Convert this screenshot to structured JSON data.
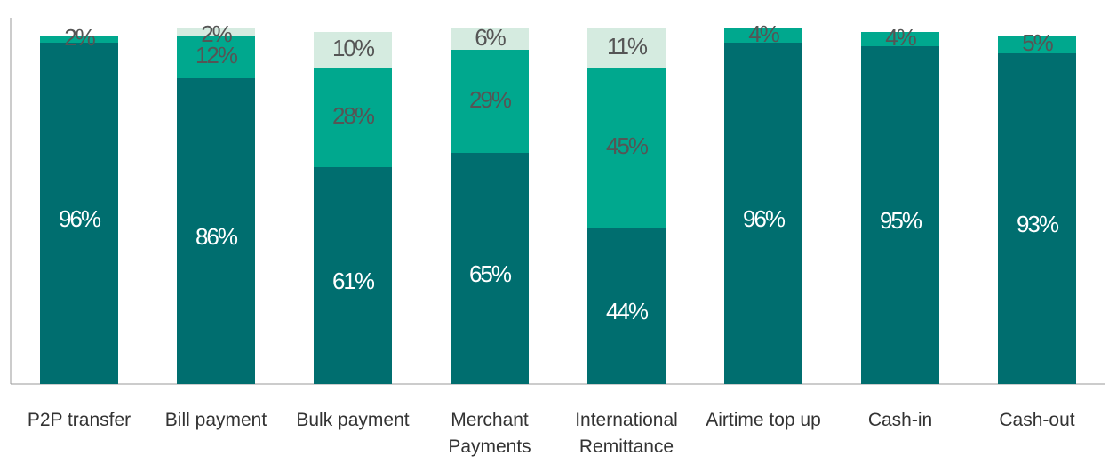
{
  "chart_data": {
    "type": "stacked_bar",
    "categories": [
      "P2P transfer",
      "Bill payment",
      "Bulk payment",
      "Merchant Payments",
      "International Remittance",
      "Airtime top up",
      "Cash-in",
      "Cash-out"
    ],
    "series": [
      {
        "color": "#006e6f",
        "values": [
          96,
          86,
          61,
          65,
          44,
          96,
          95,
          93
        ],
        "value_labels": [
          "96%",
          "86%",
          "61%",
          "65%",
          "44%",
          "96%",
          "95%",
          "93%"
        ]
      },
      {
        "color": "#00a88e",
        "values": [
          2,
          12,
          28,
          29,
          45,
          4,
          4,
          5
        ],
        "value_labels": [
          "2%",
          "12%",
          "28%",
          "29%",
          "45%",
          "4%",
          "4%",
          "5%"
        ]
      },
      {
        "color": "#d5ebe0",
        "values": [
          null,
          2,
          10,
          6,
          11,
          null,
          null,
          null
        ],
        "value_labels": [
          null,
          "2%",
          "10%",
          "6%",
          "11%",
          null,
          null,
          null
        ]
      }
    ],
    "ylim": [
      0,
      100
    ]
  }
}
